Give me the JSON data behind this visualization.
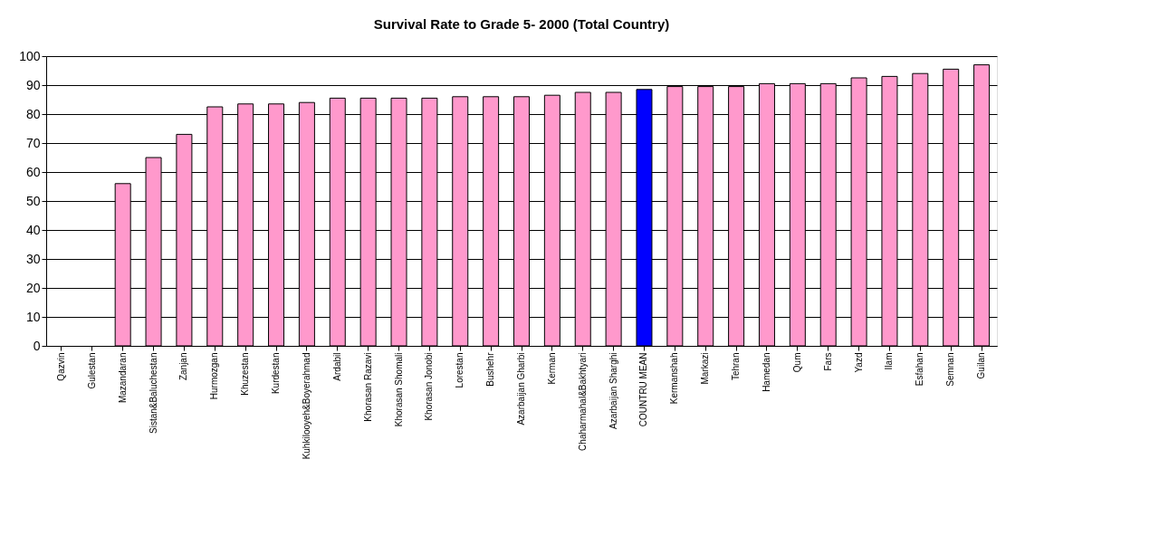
{
  "chart_data": {
    "type": "bar",
    "title": "Survival Rate to Grade 5-  2000 (Total Country)",
    "categories": [
      "Qazvin",
      "Gulestan",
      "Mazandaran",
      "Sistan&Baluchestan",
      "Zanjan",
      "Hurmozgan",
      "Khuzestan",
      "Kurdestan",
      "Kuhkilooyeh&Boyerahmad",
      "Ardabil",
      "Khorasan Razavi",
      "Khorasan Shomali",
      "Khorasan Jonobi",
      "Lorestan",
      "Bushehr",
      "Azarbaijan Gharbi",
      "Kerman",
      "Chaharmahal&Bakhtyari",
      "Azarbaijan Sharghi",
      "COUNTRU MEAN",
      "Kermanshah",
      "Markazi",
      "Tehran",
      "Hamedan",
      "Qum",
      "Fars",
      "Yazd",
      "Ilam",
      "Esfahan",
      "Semnan",
      "Guilan"
    ],
    "values": [
      null,
      null,
      56,
      65,
      73,
      82.5,
      83.5,
      83.5,
      84,
      85.5,
      85.5,
      85.5,
      85.5,
      86,
      86,
      86,
      86.5,
      87.5,
      87.5,
      88.5,
      89.5,
      89.5,
      89.5,
      90.5,
      90.5,
      90.5,
      92.5,
      93,
      94,
      95.5,
      97
    ],
    "colors": [
      "#ff99cc",
      "#ff99cc",
      "#ff99cc",
      "#ff99cc",
      "#ff99cc",
      "#ff99cc",
      "#ff99cc",
      "#ff99cc",
      "#ff99cc",
      "#ff99cc",
      "#ff99cc",
      "#ff99cc",
      "#ff99cc",
      "#ff99cc",
      "#ff99cc",
      "#ff99cc",
      "#ff99cc",
      "#ff99cc",
      "#ff99cc",
      "#0000ff",
      "#ff99cc",
      "#ff99cc",
      "#ff99cc",
      "#ff99cc",
      "#ff99cc",
      "#ff99cc",
      "#ff99cc",
      "#ff99cc",
      "#ff99cc",
      "#ff99cc",
      "#ff99cc"
    ],
    "ylim": [
      0,
      100
    ],
    "yticks": [
      0,
      10,
      20,
      30,
      40,
      50,
      60,
      70,
      80,
      90,
      100
    ],
    "grid": "y"
  }
}
